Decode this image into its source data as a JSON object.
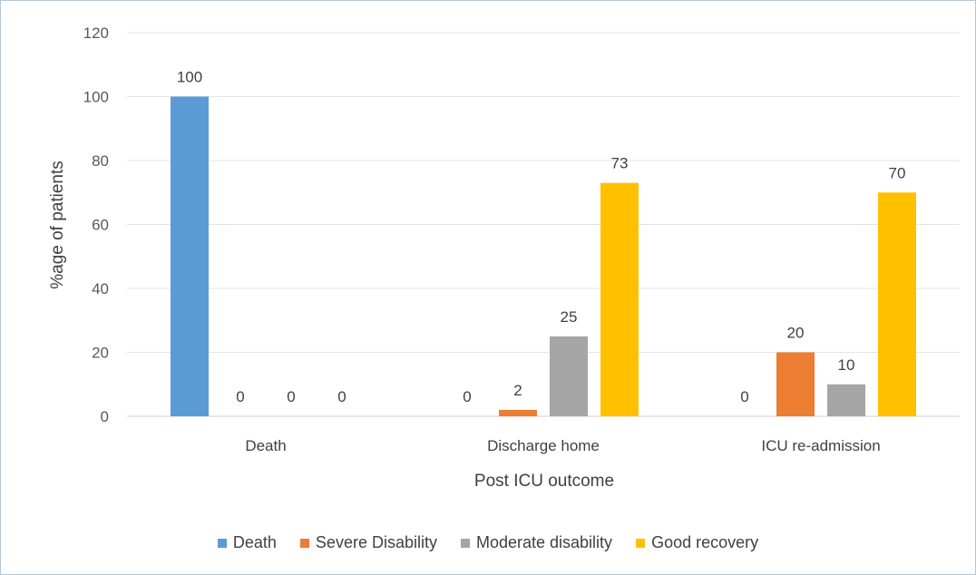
{
  "chart_data": {
    "type": "bar",
    "categories": [
      "Death",
      "Discharge home",
      "ICU re-admission"
    ],
    "series": [
      {
        "name": "Death",
        "values": [
          100,
          0,
          0
        ],
        "color": "#5b9bd5"
      },
      {
        "name": "Severe Disability",
        "values": [
          0,
          2,
          20
        ],
        "color": "#ed7d31"
      },
      {
        "name": "Moderate disability",
        "values": [
          0,
          25,
          10
        ],
        "color": "#a5a5a5"
      },
      {
        "name": "Good recovery",
        "values": [
          0,
          73,
          70
        ],
        "color": "#ffc000"
      }
    ],
    "xlabel": "Post ICU outcome",
    "ylabel": "%age of patients",
    "ylim": [
      0,
      120
    ],
    "yticks": [
      0,
      20,
      40,
      60,
      80,
      100,
      120
    ],
    "grid": true,
    "legend_position": "bottom"
  }
}
